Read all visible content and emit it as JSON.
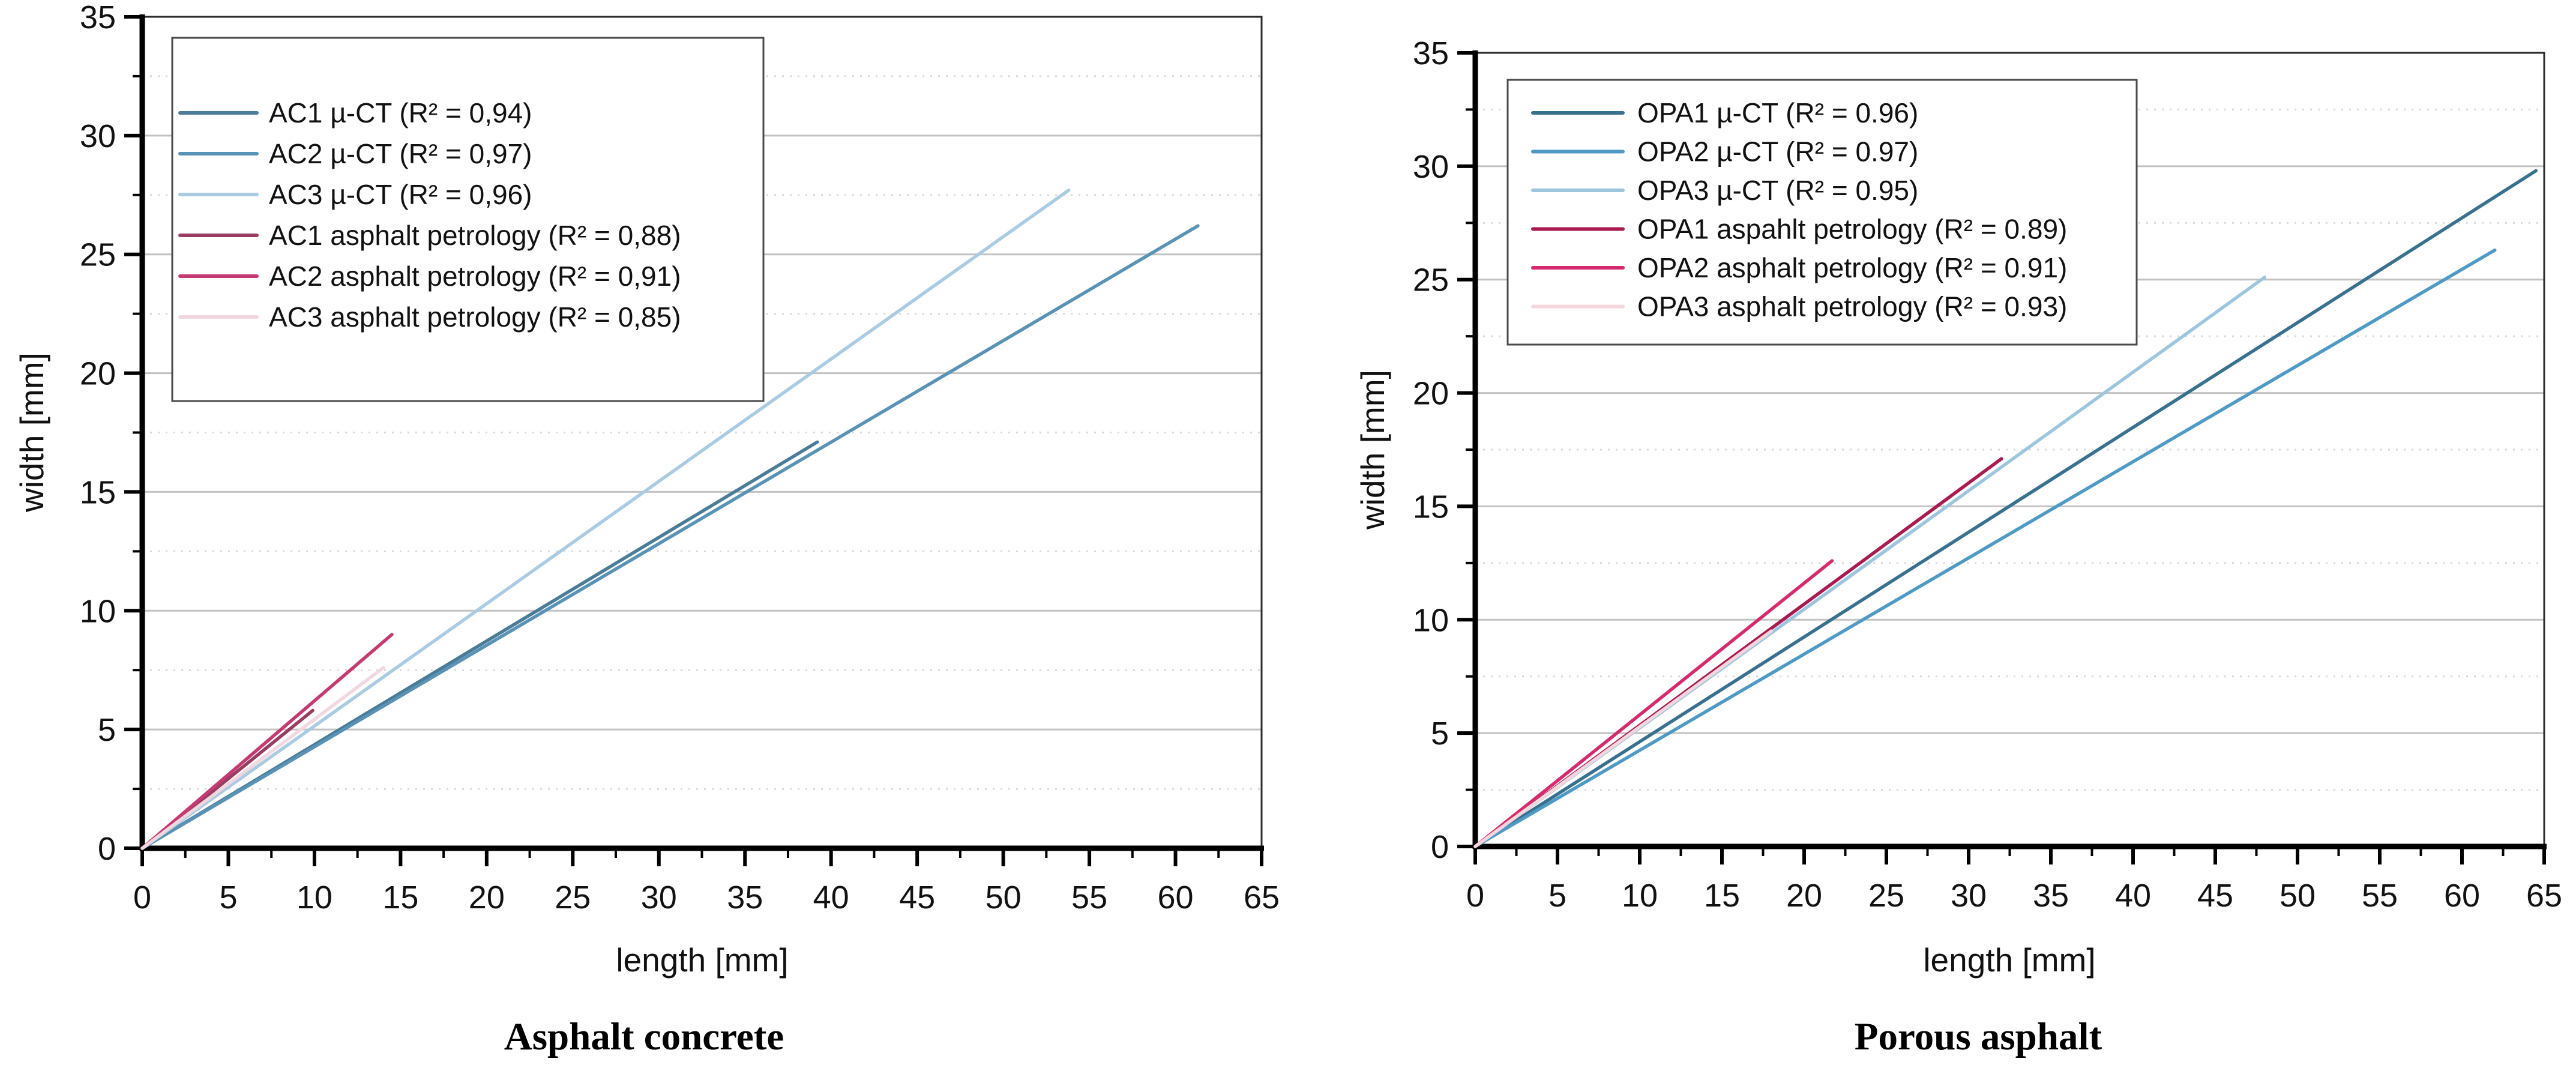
{
  "figure": {
    "description_left_caption": "Asphalt concrete",
    "description_right_caption": "Porous asphalt"
  },
  "chart_data": [
    {
      "type": "line",
      "title": "Asphalt concrete",
      "xlabel": "length [mm]",
      "ylabel": "width [mm]",
      "xlim": [
        0,
        65
      ],
      "ylim": [
        0,
        35
      ],
      "x_ticks": [
        0,
        5,
        10,
        15,
        20,
        25,
        30,
        35,
        40,
        45,
        50,
        55,
        60,
        65
      ],
      "y_ticks": [
        0,
        5,
        10,
        15,
        20,
        25,
        30,
        35
      ],
      "minor_step": 2.5,
      "grid": "horizontal major solid + minor dotted",
      "legend_position": "top-left",
      "series": [
        {
          "name": "AC1 µ-CT (R² = 0,94)",
          "color": "#4a7c98",
          "points": [
            [
              0,
              0
            ],
            [
              39.2,
              17.1
            ]
          ]
        },
        {
          "name": "AC2 µ-CT (R² = 0,97)",
          "color": "#5a92b6",
          "points": [
            [
              0,
              0
            ],
            [
              61.3,
              26.2
            ]
          ]
        },
        {
          "name": "AC3 µ-CT (R² = 0,96)",
          "color": "#aacbe2",
          "points": [
            [
              0,
              0
            ],
            [
              53.8,
              27.7
            ]
          ]
        },
        {
          "name": "AC1 asphalt petrology (R² = 0,88)",
          "color": "#993c62",
          "points": [
            [
              0,
              0
            ],
            [
              9.9,
              5.8
            ]
          ]
        },
        {
          "name": "AC2 asphalt petrology (R² = 0,91)",
          "color": "#c43a72",
          "points": [
            [
              0,
              0
            ],
            [
              14.5,
              9.0
            ]
          ]
        },
        {
          "name": "AC3 asphalt petrology (R² = 0,85)",
          "color": "#f0d7e0",
          "points": [
            [
              0,
              0
            ],
            [
              14.0,
              7.6
            ]
          ]
        }
      ]
    },
    {
      "type": "line",
      "title": "Porous asphalt",
      "xlabel": "length [mm]",
      "ylabel": "width [mm]",
      "xlim": [
        0,
        65
      ],
      "ylim": [
        0,
        35
      ],
      "x_ticks": [
        0,
        5,
        10,
        15,
        20,
        25,
        30,
        35,
        40,
        45,
        50,
        55,
        60,
        65
      ],
      "y_ticks": [
        0,
        5,
        10,
        15,
        20,
        25,
        30,
        35
      ],
      "minor_step": 2.5,
      "grid": "horizontal major solid + minor dotted",
      "legend_position": "top-left",
      "series": [
        {
          "name": "OPA1 µ-CT (R² = 0.96)",
          "color": "#39708e",
          "points": [
            [
              0,
              0
            ],
            [
              64.5,
              29.8
            ]
          ]
        },
        {
          "name": "OPA2 µ-CT (R² = 0.97)",
          "color": "#4f9ac5",
          "points": [
            [
              0,
              0
            ],
            [
              62.0,
              26.3
            ]
          ]
        },
        {
          "name": "OPA3 µ-CT (R² = 0.95)",
          "color": "#9dc6de",
          "points": [
            [
              0,
              0
            ],
            [
              48.0,
              25.1
            ]
          ]
        },
        {
          "name": "OPA1 aspahlt petrology (R² = 0.89)",
          "color": "#a81a50",
          "points": [
            [
              0,
              0
            ],
            [
              32.0,
              17.1
            ]
          ]
        },
        {
          "name": "OPA2 asphalt petrology (R² = 0.91)",
          "color": "#d42a6e",
          "points": [
            [
              0,
              0
            ],
            [
              21.7,
              12.6
            ]
          ]
        },
        {
          "name": "OPA3 asphalt petrology (R² = 0.93)",
          "color": "#f4d6dc",
          "points": [
            [
              0,
              0
            ],
            [
              18.0,
              9.5
            ]
          ]
        }
      ]
    }
  ]
}
